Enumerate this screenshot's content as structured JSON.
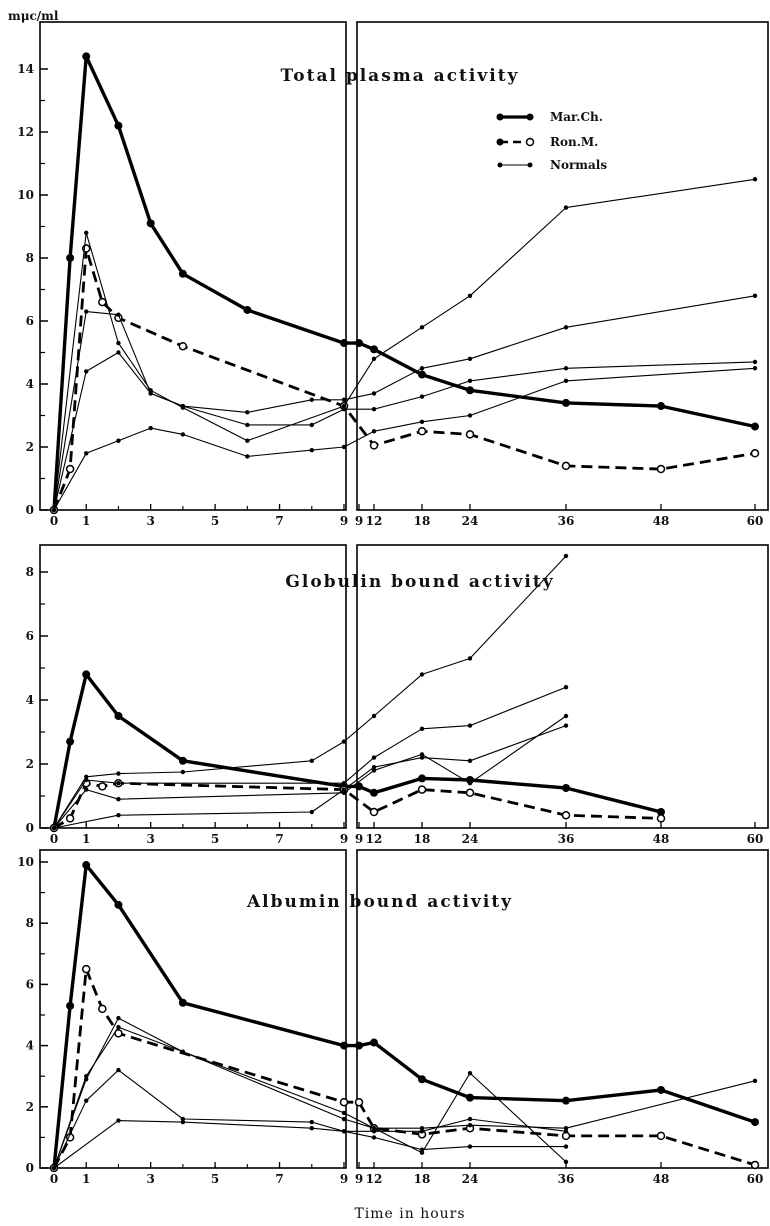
{
  "figure": {
    "y_unit": "mμc/ml",
    "x_axis_title": "Time in hours",
    "legend": [
      {
        "name": "Mar.Ch.",
        "style": "thick-solid-filled"
      },
      {
        "name": "Ron.M.",
        "style": "dashed-open"
      },
      {
        "name": "Normals",
        "style": "thin-solid-dot"
      }
    ],
    "left_ticks": [
      "0",
      "1",
      "3",
      "5",
      "7",
      "9"
    ],
    "right_ticks": [
      "9",
      "12",
      "18",
      "24",
      "36",
      "48",
      "60"
    ]
  },
  "chart_data": [
    {
      "type": "line",
      "title": "Total plasma activity",
      "ylabel": "mμc/ml",
      "xlabel": "Time in hours",
      "ylim": [
        0,
        15
      ],
      "yticks": [
        0,
        2,
        4,
        6,
        8,
        10,
        12,
        14
      ],
      "ytick_labels": [
        "0",
        "2",
        "4",
        "6",
        "8",
        "10",
        "12",
        "14"
      ],
      "axis_break": [
        9,
        9
      ],
      "legend_position": "top-right",
      "series": [
        {
          "name": "Mar.Ch.",
          "style": "thick",
          "x": [
            0,
            0.5,
            1,
            2,
            3,
            4,
            6,
            9,
            9,
            12,
            18,
            24,
            36,
            48,
            60
          ],
          "y": [
            0,
            8,
            14.4,
            12.2,
            9.1,
            7.5,
            6.35,
            5.3,
            5.3,
            5.1,
            4.3,
            3.8,
            3.4,
            3.3,
            2.65
          ]
        },
        {
          "name": "Ron.M.",
          "style": "dashed",
          "x": [
            0,
            0.5,
            1,
            1.5,
            2,
            4,
            9,
            12,
            18,
            24,
            36,
            48,
            60
          ],
          "y": [
            0,
            1.3,
            8.3,
            6.6,
            6.1,
            5.2,
            3.3,
            2.05,
            2.5,
            2.4,
            1.4,
            1.3,
            1.8
          ]
        },
        {
          "style": "thin",
          "x": [
            0,
            1,
            2,
            3,
            4,
            6,
            9,
            12,
            18,
            24,
            36,
            60
          ],
          "y": [
            0,
            8.8,
            5.3,
            3.8,
            3.25,
            2.2,
            3.3,
            4.8,
            5.8,
            6.8,
            9.6,
            10.5
          ]
        },
        {
          "style": "thin",
          "x": [
            0,
            1,
            2,
            3,
            4,
            6,
            8,
            9,
            12,
            18,
            24,
            36,
            60
          ],
          "y": [
            0,
            6.3,
            6.2,
            3.7,
            3.3,
            3.1,
            3.5,
            3.5,
            3.7,
            4.5,
            4.8,
            5.8,
            6.8
          ]
        },
        {
          "style": "thin",
          "x": [
            0,
            1,
            2,
            3,
            4,
            6,
            8,
            9,
            12,
            18,
            24,
            36,
            60
          ],
          "y": [
            0,
            4.4,
            5,
            3.7,
            3.3,
            2.7,
            2.7,
            3.2,
            3.2,
            3.6,
            4.1,
            4.5,
            4.7
          ]
        },
        {
          "style": "thin",
          "x": [
            0,
            1,
            2,
            3,
            4,
            6,
            8,
            9,
            12,
            18,
            24,
            36,
            60
          ],
          "y": [
            0,
            1.8,
            2.2,
            2.6,
            2.4,
            1.7,
            1.9,
            2,
            2.5,
            2.8,
            3,
            4.1,
            4.5
          ]
        }
      ]
    },
    {
      "type": "line",
      "title": "Globulin bound activity",
      "ylabel": "mμc/ml",
      "xlabel": "Time in hours",
      "ylim": [
        0,
        9
      ],
      "yticks": [
        0,
        2,
        4,
        6,
        8
      ],
      "ytick_labels": [
        "0",
        "2",
        "4",
        "6",
        "8"
      ],
      "axis_break": [
        9,
        9
      ],
      "series": [
        {
          "name": "Mar.Ch.",
          "style": "thick",
          "x": [
            0,
            0.5,
            1,
            2,
            4,
            9,
            9,
            12,
            18,
            24,
            36,
            48
          ],
          "y": [
            0,
            2.7,
            4.8,
            3.5,
            2.1,
            1.3,
            1.3,
            1.1,
            1.55,
            1.5,
            1.25,
            0.5
          ]
        },
        {
          "name": "Ron.M.",
          "style": "dashed",
          "x": [
            0,
            0.5,
            1,
            1.5,
            2,
            9,
            12,
            18,
            24,
            36,
            48
          ],
          "y": [
            0,
            0.3,
            1.4,
            1.3,
            1.4,
            1.2,
            0.5,
            1.2,
            1.1,
            0.4,
            0.3
          ]
        },
        {
          "style": "thin",
          "x": [
            0,
            1,
            2,
            4,
            8,
            9,
            12,
            18,
            24,
            36
          ],
          "y": [
            0,
            1.6,
            1.7,
            1.75,
            2.1,
            2.7,
            3.5,
            4.8,
            5.3,
            8.5
          ]
        },
        {
          "style": "thin",
          "x": [
            0,
            1,
            2,
            9,
            12,
            18,
            24,
            36
          ],
          "y": [
            0,
            1.5,
            1.4,
            1.4,
            2.2,
            3.1,
            3.2,
            4.4
          ]
        },
        {
          "style": "thin",
          "x": [
            0,
            1,
            2,
            9,
            12,
            18,
            24,
            36
          ],
          "y": [
            0,
            1.2,
            0.9,
            1.1,
            1.8,
            2.3,
            1.4,
            3.5
          ]
        },
        {
          "style": "thin",
          "x": [
            0,
            2,
            8,
            9,
            12,
            18,
            24,
            36
          ],
          "y": [
            0,
            0.4,
            0.5,
            1.2,
            1.9,
            2.2,
            2.1,
            3.2
          ]
        }
      ]
    },
    {
      "type": "line",
      "title": "Albumin bound activity",
      "ylabel": "mμc/ml",
      "xlabel": "Time in hours",
      "ylim": [
        0,
        10
      ],
      "yticks": [
        0,
        2,
        4,
        6,
        8,
        10
      ],
      "ytick_labels": [
        "0",
        "2",
        "4",
        "6",
        "8",
        "10"
      ],
      "axis_break": [
        9,
        9
      ],
      "series": [
        {
          "name": "Mar.Ch.",
          "style": "thick",
          "x": [
            0,
            0.5,
            1,
            2,
            4,
            9,
            9,
            12,
            18,
            24,
            36,
            48,
            60
          ],
          "y": [
            0,
            5.3,
            9.9,
            8.6,
            5.4,
            4,
            4,
            4.1,
            2.9,
            2.3,
            2.2,
            2.55,
            1.5
          ]
        },
        {
          "name": "Ron.M.",
          "style": "dashed",
          "x": [
            0,
            0.5,
            1,
            1.5,
            2,
            9,
            9,
            12,
            18,
            24,
            36,
            48,
            60
          ],
          "y": [
            0,
            1,
            6.5,
            5.2,
            4.4,
            2.15,
            2.15,
            1.3,
            1.1,
            1.3,
            1.05,
            1.05,
            0.1
          ]
        },
        {
          "style": "thin",
          "x": [
            0,
            1,
            2,
            4,
            9,
            12,
            18,
            24,
            36,
            60
          ],
          "y": [
            0,
            2.9,
            4.9,
            3.8,
            1.6,
            1.3,
            1.3,
            1.4,
            1.3,
            2.85
          ]
        },
        {
          "style": "thin",
          "x": [
            0,
            1,
            2,
            9,
            12,
            18,
            24,
            36
          ],
          "y": [
            0,
            3,
            4.6,
            1.8,
            1.3,
            0.5,
            3.1,
            0.2
          ]
        },
        {
          "style": "thin",
          "x": [
            0,
            1,
            2,
            4,
            8,
            9,
            12,
            18,
            24,
            36
          ],
          "y": [
            0,
            2.2,
            3.2,
            1.6,
            1.5,
            1.2,
            1,
            0.6,
            0.7,
            0.7
          ]
        },
        {
          "style": "thin",
          "x": [
            0,
            2,
            4,
            8,
            9,
            12,
            18,
            24,
            36
          ],
          "y": [
            0,
            1.55,
            1.5,
            1.3,
            1.2,
            1.2,
            1.2,
            1.6,
            1.2
          ]
        }
      ]
    }
  ]
}
